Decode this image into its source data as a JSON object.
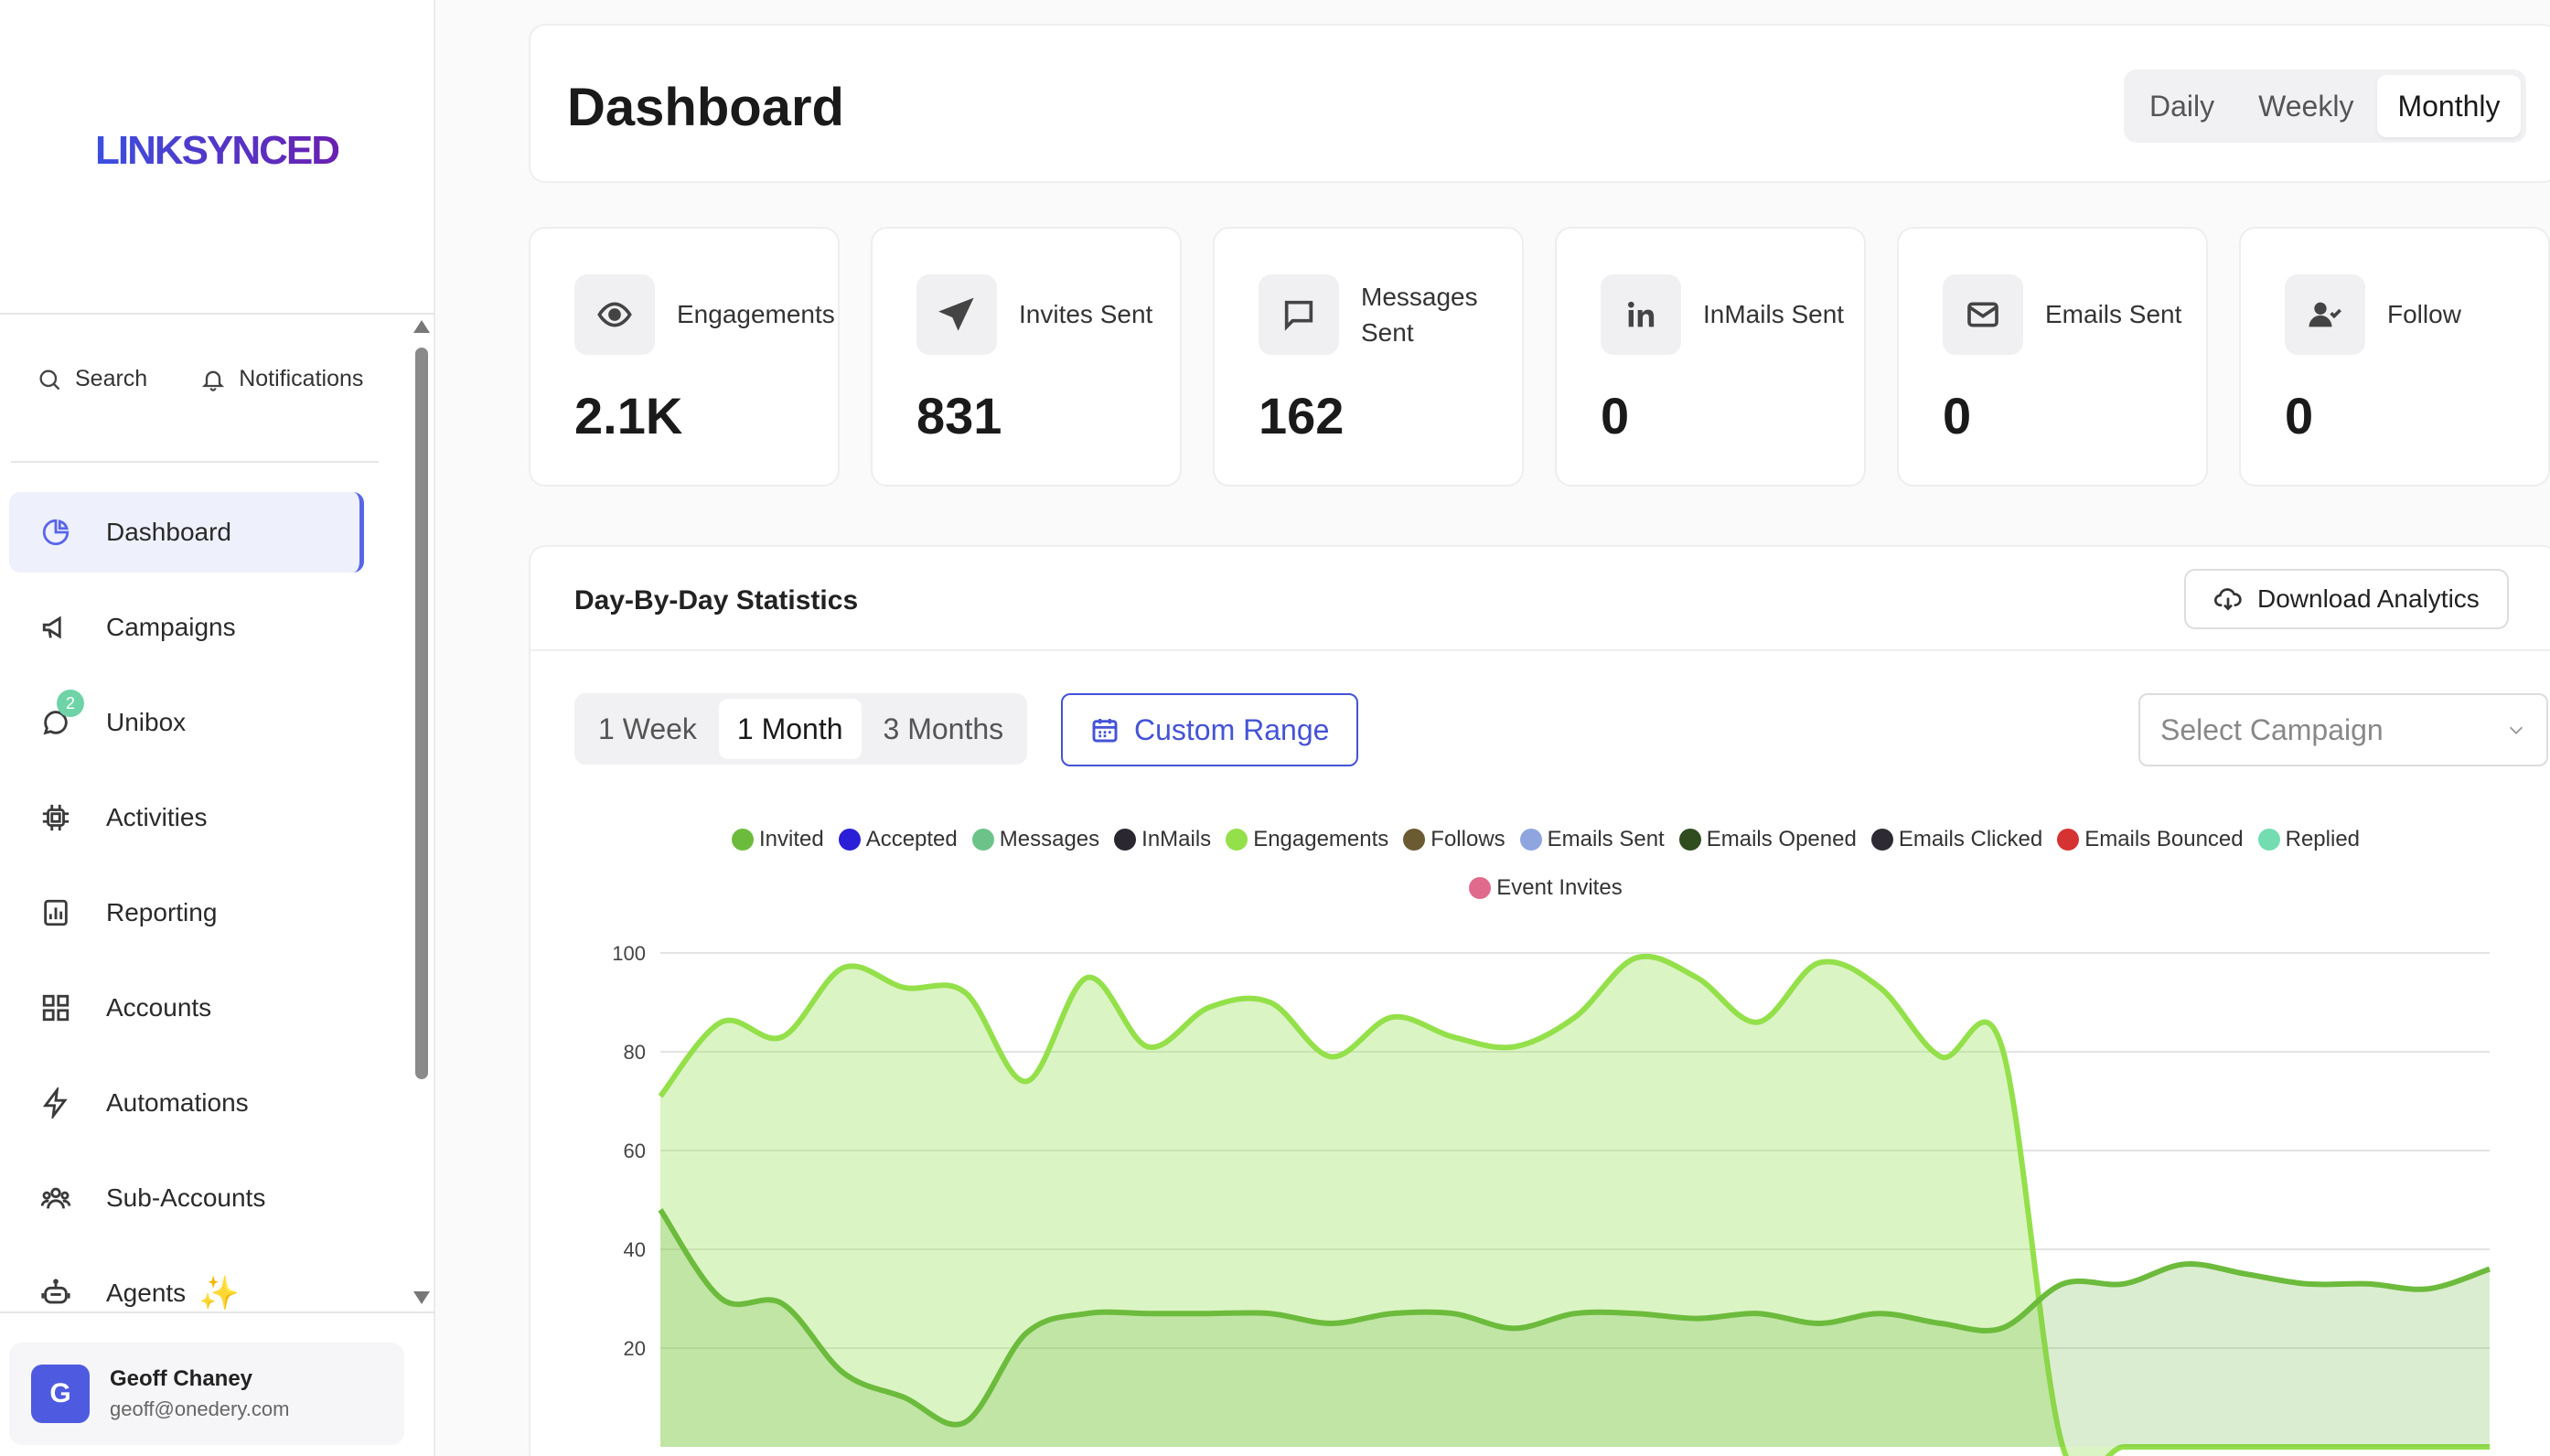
{
  "sidebar": {
    "logo": "LINKSYNCED",
    "search_label": "Search",
    "notifications_label": "Notifications",
    "items": [
      {
        "label": "Dashboard",
        "icon": "pie-chart-icon"
      },
      {
        "label": "Campaigns",
        "icon": "megaphone-icon"
      },
      {
        "label": "Unibox",
        "icon": "chat-icon",
        "badge": "2"
      },
      {
        "label": "Activities",
        "icon": "cpu-icon"
      },
      {
        "label": "Reporting",
        "icon": "bar-chart-icon"
      },
      {
        "label": "Accounts",
        "icon": "grid-icon"
      },
      {
        "label": "Automations",
        "icon": "bolt-icon"
      },
      {
        "label": "Sub-Accounts",
        "icon": "users-icon"
      },
      {
        "label": "Agents",
        "icon": "robot-icon"
      }
    ],
    "user": {
      "initial": "G",
      "name": "Geoff Chaney",
      "email": "geoff@onedery.com"
    }
  },
  "header": {
    "title": "Dashboard",
    "periods": [
      "Daily",
      "Weekly",
      "Monthly"
    ],
    "active_period": "Monthly"
  },
  "stats": [
    {
      "label": "Engagements",
      "value": "2.1K",
      "icon": "eye-icon"
    },
    {
      "label": "Invites Sent",
      "value": "831",
      "icon": "send-icon"
    },
    {
      "label": "Messages Sent",
      "value": "162",
      "icon": "message-icon"
    },
    {
      "label": "InMails Sent",
      "value": "0",
      "icon": "linkedin-icon"
    },
    {
      "label": "Emails Sent",
      "value": "0",
      "icon": "mail-icon"
    },
    {
      "label": "Follow",
      "value": "0",
      "icon": "user-check-icon"
    }
  ],
  "statistics": {
    "title": "Day-By-Day Statistics",
    "download_label": "Download Analytics",
    "ranges": [
      "1 Week",
      "1 Month",
      "3 Months"
    ],
    "active_range": "1 Month",
    "custom_range_label": "Custom Range",
    "campaign_placeholder": "Select Campaign"
  },
  "colors": {
    "accent": "#4453d6",
    "engagements_line": "#94e04a",
    "invited_line": "#6cbb3c"
  },
  "chart_data": {
    "type": "area",
    "legend": [
      {
        "name": "Invited",
        "color": "#6cbb3c"
      },
      {
        "name": "Accepted",
        "color": "#2a1fd6"
      },
      {
        "name": "Messages",
        "color": "#6cc38a"
      },
      {
        "name": "InMails",
        "color": "#2b2730"
      },
      {
        "name": "Engagements",
        "color": "#94e04a"
      },
      {
        "name": "Follows",
        "color": "#6b5a32"
      },
      {
        "name": "Emails Sent",
        "color": "#8fa5e0"
      },
      {
        "name": "Emails Opened",
        "color": "#2f4d1f"
      },
      {
        "name": "Emails Clicked",
        "color": "#2d2a33"
      },
      {
        "name": "Emails Bounced",
        "color": "#d63232"
      },
      {
        "name": "Replied",
        "color": "#74ddb0"
      },
      {
        "name": "Event Invites",
        "color": "#e06a8c"
      }
    ],
    "yticks": [
      20,
      40,
      60,
      80,
      100
    ],
    "ylim": [
      0,
      100
    ],
    "series": [
      {
        "name": "Engagements",
        "values": [
          71,
          86,
          83,
          97,
          93,
          92,
          74,
          95,
          81,
          89,
          90,
          79,
          87,
          83,
          81,
          87,
          99,
          95,
          86,
          98,
          93,
          79,
          81,
          0,
          0,
          0,
          0,
          0,
          0,
          0,
          0
        ]
      },
      {
        "name": "Invited",
        "values": [
          48,
          30,
          29,
          15,
          10,
          5,
          23,
          27,
          27,
          27,
          27,
          25,
          27,
          27,
          24,
          27,
          27,
          26,
          27,
          25,
          27,
          25,
          24,
          33,
          33,
          37,
          35,
          33,
          33,
          32,
          36
        ]
      }
    ]
  }
}
